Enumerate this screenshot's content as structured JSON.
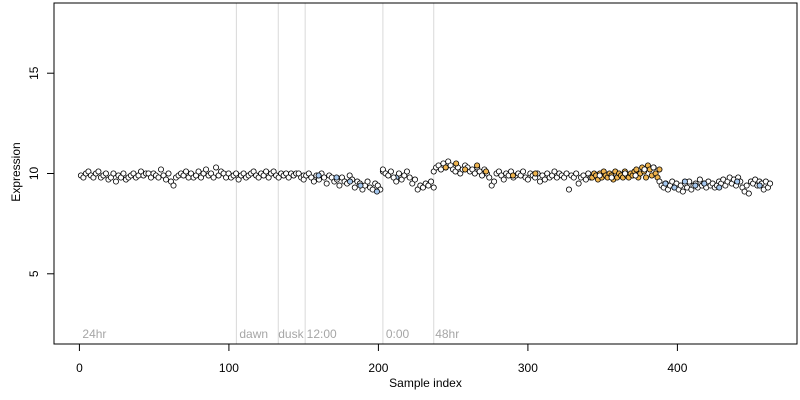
{
  "chart_data": {
    "type": "scatter",
    "title": "",
    "xlabel": "Sample index",
    "ylabel": "Expression",
    "xlim": [
      -17,
      480
    ],
    "ylim": [
      1.5,
      18.5
    ],
    "x_ticks": [
      0,
      100,
      200,
      300,
      400
    ],
    "y_ticks": [
      5,
      10,
      15
    ],
    "grid": false,
    "legend": "none",
    "colors": {
      "point_edge": "#000000",
      "default_fill": "#ffffff",
      "blue_fill": "#a6c8ef",
      "orange_fill": "#f0b54f",
      "divider": "#d9d9d9",
      "annotation": "#a6a6a6"
    },
    "annotations": [
      {
        "x": 2,
        "label": "24hr"
      },
      {
        "x": 107,
        "label": "dawn"
      },
      {
        "x": 133,
        "label": "dusk"
      },
      {
        "x": 152,
        "label": "12:00"
      },
      {
        "x": 205,
        "label": "0:00"
      },
      {
        "x": 238,
        "label": "48hr"
      }
    ],
    "dividers": [
      105,
      133,
      151,
      203,
      237
    ],
    "series": [
      {
        "style": "white",
        "x_start": 1,
        "x_end": 150,
        "values": [
          9.9,
          9.8,
          10.0,
          10.1,
          9.9,
          9.8,
          10.0,
          10.1,
          9.8,
          9.9,
          10.0,
          9.7,
          9.8,
          10.0,
          9.6,
          9.9,
          9.8,
          10.0,
          9.7,
          9.8,
          9.9,
          10.0,
          9.8,
          9.9,
          10.1,
          9.9,
          10.0,
          10.0,
          9.8,
          10.0,
          9.9,
          9.8,
          10.2,
          9.9,
          9.7,
          10.0,
          9.6,
          9.4,
          9.8,
          9.9,
          10.0,
          9.9,
          10.1,
          9.8,
          10.0,
          9.8,
          9.9,
          10.1,
          9.8,
          10.0,
          10.2,
          9.9,
          10.0,
          9.8,
          10.3,
          9.9,
          10.1,
          10.0,
          9.8,
          10.0,
          9.8,
          9.9,
          10.0,
          9.7,
          9.9,
          10.0,
          9.8,
          9.9,
          10.0,
          10.1,
          9.9,
          9.8,
          10.0,
          9.9,
          10.1,
          9.8,
          10.0,
          10.1,
          9.9,
          9.8,
          10.0,
          9.9,
          10.0,
          9.8,
          10.0,
          9.9,
          10.0,
          10.0,
          9.8,
          9.9
        ]
      },
      {
        "style": "white",
        "x_start": 150,
        "x_end": 203,
        "values": [
          9.7,
          9.9,
          10.0,
          9.8,
          9.6,
          9.9,
          9.7,
          10.0,
          9.8,
          9.5,
          9.9,
          9.8,
          9.6,
          9.7,
          9.4,
          9.8,
          9.6,
          9.5,
          9.9,
          9.7,
          9.3,
          9.6,
          9.5,
          9.2,
          9.4,
          9.6,
          9.3,
          9.2,
          9.5,
          9.4,
          9.2,
          10.1
        ]
      },
      {
        "style": "blue",
        "x": [
          160,
          172,
          181,
          188,
          199,
          212
        ],
        "values": [
          9.9,
          9.8,
          9.6,
          9.4,
          9.1,
          9.8
        ]
      },
      {
        "style": "white",
        "x_start": 203,
        "x_end": 237,
        "values": [
          10.2,
          10.0,
          9.9,
          10.1,
          9.8,
          9.6,
          10.0,
          9.7,
          9.9,
          10.1,
          9.8,
          9.5,
          9.7,
          9.2,
          9.4,
          9.3,
          9.5,
          9.4,
          9.6,
          9.3
        ]
      },
      {
        "style": "white",
        "x_start": 237,
        "x_end": 342,
        "values": [
          10.1,
          10.3,
          10.4,
          10.2,
          10.5,
          10.3,
          10.6,
          10.4,
          10.2,
          10.1,
          10.3,
          10.0,
          10.2,
          10.4,
          10.3,
          10.1,
          10.2,
          10.0,
          10.3,
          10.1,
          9.9,
          10.2,
          10.0,
          9.8,
          9.4,
          9.6,
          10.0,
          10.1,
          9.9,
          9.7,
          10.0,
          9.9,
          10.1,
          9.8,
          9.9,
          10.0,
          9.9,
          10.1,
          9.8,
          9.7,
          10.0,
          9.9,
          9.8,
          10.0,
          9.6,
          9.9,
          9.7,
          10.0,
          9.8,
          9.9,
          10.1,
          9.8,
          10.0,
          9.9,
          9.8,
          10.0,
          9.2,
          9.9,
          9.8,
          10.0,
          9.5,
          9.8,
          9.9,
          9.7,
          10.0,
          9.8
        ]
      },
      {
        "style": "orange",
        "x": [
          245,
          252,
          258,
          266,
          272,
          290,
          305
        ],
        "values": [
          10.3,
          10.5,
          10.2,
          10.4,
          10.1,
          9.9,
          10.0
        ]
      },
      {
        "style": "orange",
        "x_start": 343,
        "x_end": 388,
        "values": [
          9.8,
          10.0,
          9.9,
          9.7,
          10.0,
          9.8,
          10.1,
          9.9,
          9.8,
          10.0,
          9.9,
          9.7,
          10.1,
          9.8,
          10.0,
          9.9,
          9.8,
          10.1,
          9.9,
          9.8,
          10.0,
          9.9,
          10.1,
          10.2,
          9.8,
          10.0,
          10.3,
          10.1,
          9.8,
          10.4,
          10.2,
          9.9,
          10.3,
          10.0,
          9.8,
          10.2
        ]
      },
      {
        "style": "white",
        "x": [
          348,
          356,
          365,
          372,
          378,
          384
        ],
        "values": [
          9.9,
          9.8,
          10.0,
          9.9,
          10.2,
          10.3
        ]
      },
      {
        "style": "white",
        "x_start": 388,
        "x_end": 462,
        "values": [
          9.6,
          9.4,
          9.3,
          9.5,
          9.2,
          9.4,
          9.6,
          9.3,
          9.5,
          9.2,
          9.4,
          9.1,
          9.5,
          9.3,
          9.6,
          9.2,
          9.4,
          9.5,
          9.3,
          9.7,
          9.4,
          9.5,
          9.3,
          9.6,
          9.4,
          9.5,
          9.3,
          9.4,
          9.6,
          9.5,
          9.7,
          9.4,
          9.6,
          9.8,
          9.5,
          9.7,
          9.4,
          9.8,
          9.6,
          9.3,
          9.1,
          9.4,
          9.0,
          9.6,
          9.5,
          9.7,
          9.4,
          9.6,
          9.5,
          9.2,
          9.6,
          9.3,
          9.5
        ]
      },
      {
        "style": "blue",
        "x": [
          392,
          398,
          405,
          412,
          418,
          428,
          440,
          455
        ],
        "values": [
          9.5,
          9.3,
          9.6,
          9.4,
          9.5,
          9.3,
          9.6,
          9.4
        ]
      }
    ]
  }
}
